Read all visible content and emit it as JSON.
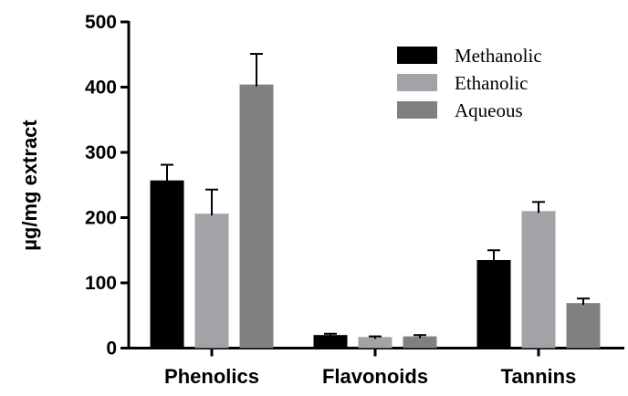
{
  "chart_data": {
    "type": "bar",
    "title": "",
    "xlabel": "",
    "ylabel": "µg/mg  extract",
    "ylim": [
      0,
      500
    ],
    "yticks": [
      0,
      100,
      200,
      300,
      400,
      500
    ],
    "categories": [
      "Phenolics",
      "Flavonoids",
      "Tannins"
    ],
    "legend_position": "top-right",
    "grid": false,
    "series": [
      {
        "name": "Methanolic",
        "color": "#000000",
        "values": [
          257,
          20,
          135
        ],
        "error": [
          24,
          2,
          15
        ]
      },
      {
        "name": "Ethanolic",
        "color": "#a3a3a7",
        "values": [
          206,
          17,
          210
        ],
        "error": [
          37,
          1,
          14
        ]
      },
      {
        "name": "Aqueous",
        "color": "#808080",
        "values": [
          404,
          18,
          69
        ],
        "error": [
          47,
          2,
          7
        ]
      }
    ]
  }
}
